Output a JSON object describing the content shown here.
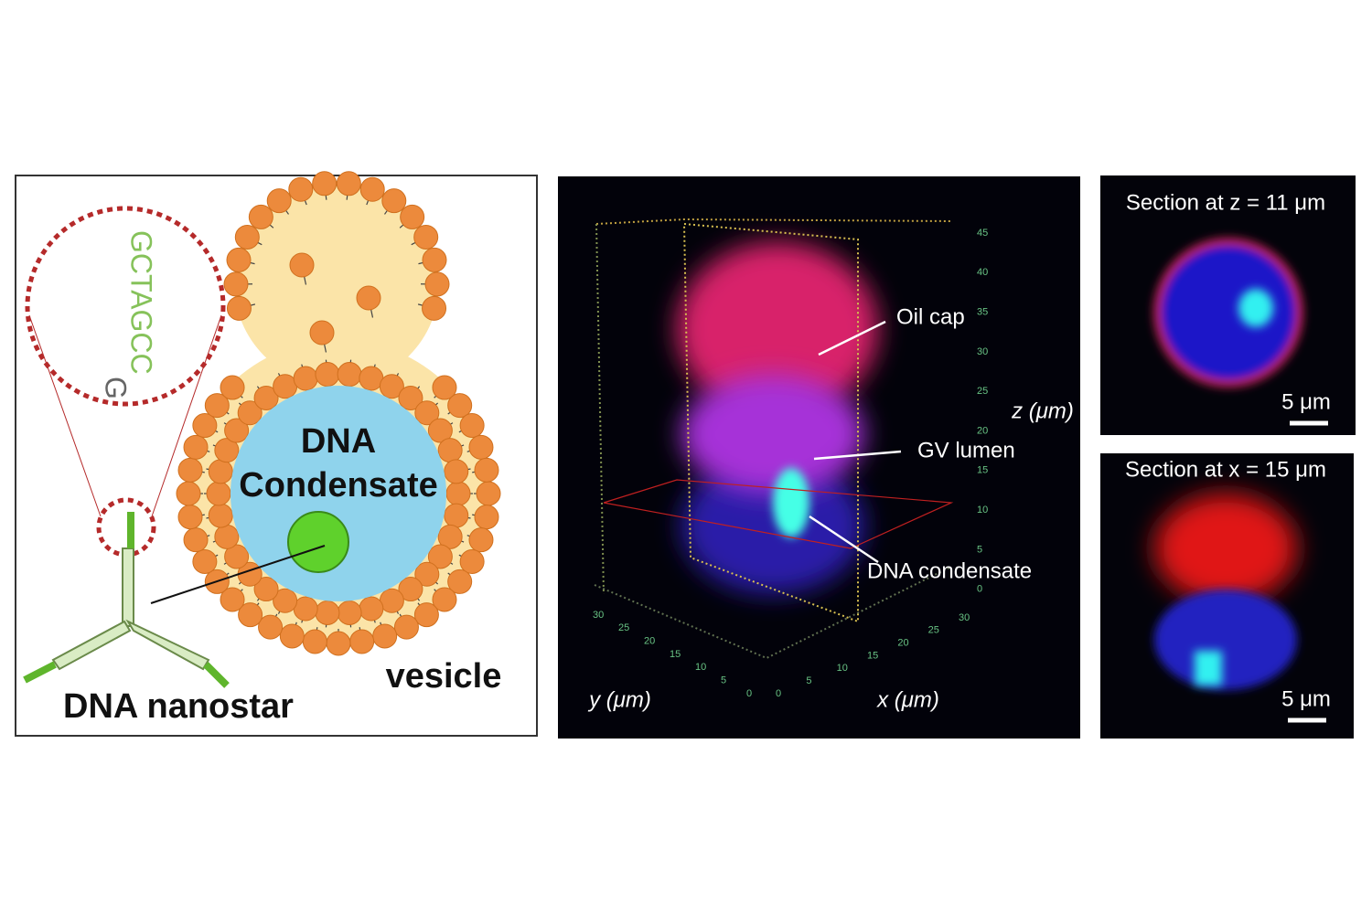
{
  "panel_a": {
    "sequence": "GCTAGCC",
    "sequence_end": "G",
    "condensate_line1": "DNA",
    "condensate_line2": "Condensate",
    "vesicle": "vesicle",
    "nanostar": "DNA nanostar"
  },
  "panel_b": {
    "annotations": [
      "Oil cap",
      "GV lumen",
      "DNA condensate"
    ],
    "z_label": "z (μm)",
    "y_label": "y (μm)",
    "x_label": "x (μm)",
    "z_ticks": [
      45,
      40,
      35,
      30,
      25,
      20,
      15,
      10,
      5,
      0
    ],
    "y_ticks": [
      30,
      25,
      20,
      15,
      10,
      5,
      0
    ],
    "x_ticks": [
      0,
      5,
      10,
      15,
      20,
      25,
      30
    ]
  },
  "panel_c": {
    "top": {
      "title": "Section at z = 11 μm",
      "scale": "5 μm"
    },
    "bottom": {
      "title": "Section at x = 15 μm",
      "scale": "5 μm"
    }
  }
}
